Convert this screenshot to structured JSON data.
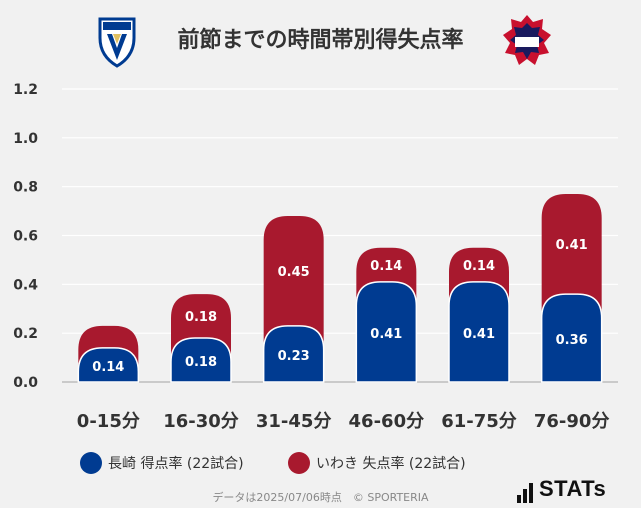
{
  "title": "前節までの時間帯別得失点率",
  "logos": {
    "left": {
      "text": "V·VAREN",
      "primary": "#003b91",
      "secondary": "#e0c060"
    },
    "right": {
      "text": "IWAKI FC",
      "primary": "#c8102e",
      "secondary": "#1a1a5e"
    }
  },
  "chart_data": {
    "type": "bar",
    "stacked": true,
    "categories": [
      "0-15分",
      "16-30分",
      "31-45分",
      "46-60分",
      "61-75分",
      "76-90分"
    ],
    "series": [
      {
        "name": "長崎 得点率 (22試合)",
        "values": [
          0.14,
          0.18,
          0.23,
          0.41,
          0.41,
          0.36
        ],
        "color": "#003b91"
      },
      {
        "name": "いわき 失点率 (22試合)",
        "values": [
          0.09,
          0.18,
          0.45,
          0.14,
          0.14,
          0.41
        ],
        "color": "#a8192e"
      }
    ],
    "bar_labels": [
      [
        "0.14",
        "0.18",
        "0.23",
        "0.41",
        "0.41",
        "0.36"
      ],
      [
        "",
        "0.18",
        "0.45",
        "0.14",
        "0.14",
        "0.41"
      ]
    ],
    "y_ticks": [
      "0.0",
      "0.2",
      "0.4",
      "0.6",
      "0.8",
      "1.0",
      "1.2"
    ],
    "ylim": [
      0,
      1.2
    ],
    "grid": true,
    "legend_placement": "bottom"
  },
  "legend": [
    {
      "label": "長崎 得点率 (22試合)",
      "color": "#003b91"
    },
    {
      "label": "いわき 失点率 (22試合)",
      "color": "#a8192e"
    }
  ],
  "footer": "データは2025/07/06時点　© SPORTERIA",
  "brand": "STATs"
}
